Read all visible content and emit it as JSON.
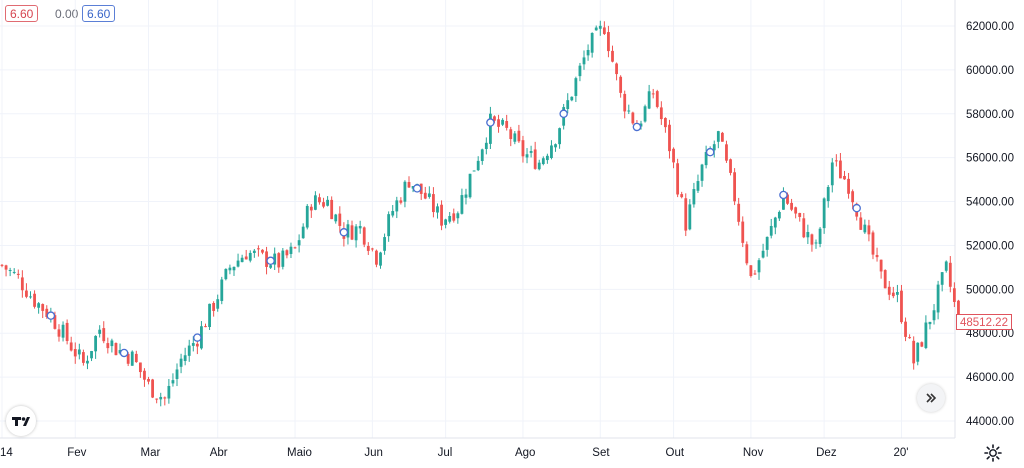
{
  "legend": {
    "open": "6.60",
    "middle": "0.00",
    "close": "6.60"
  },
  "price_label": "48512.22",
  "colors": {
    "up": "#26a69a",
    "down": "#ef5350",
    "grid": "#f0f3fa",
    "axis_text": "#131722"
  },
  "icons": {
    "logo": "tradingview-logo-icon",
    "scroll": "double-chevron-right-icon",
    "settings": "gear-icon"
  },
  "chart_data": {
    "type": "candlestick",
    "title": "",
    "y_axis": {
      "min": 43500,
      "max": 62800,
      "ticks": [
        62000,
        60000,
        58000,
        56000,
        54000,
        52000,
        50000,
        48000,
        46000,
        44000
      ],
      "tick_labels": [
        "62000.00",
        "60000.00",
        "58000.00",
        "56000.00",
        "54000.00",
        "52000.00",
        "50000.00",
        "48000.00",
        "46000.00",
        "44000.00"
      ]
    },
    "x_axis": {
      "labels": [
        "14",
        "Fev",
        "Mar",
        "Abr",
        "Maio",
        "Jun",
        "Jul",
        "Ago",
        "Set",
        "Out",
        "Nov",
        "Dez",
        "20'"
      ],
      "label_positions_day": [
        0,
        18,
        36,
        53,
        72,
        91,
        109,
        128,
        147,
        165,
        184,
        202,
        221
      ]
    },
    "close_series": [
      [
        0,
        51100
      ],
      [
        4,
        50500
      ],
      [
        8,
        49500
      ],
      [
        12,
        48800
      ],
      [
        16,
        47700
      ],
      [
        20,
        46600
      ],
      [
        24,
        48200
      ],
      [
        28,
        47300
      ],
      [
        32,
        46900
      ],
      [
        36,
        45600
      ],
      [
        40,
        45000
      ],
      [
        44,
        46800
      ],
      [
        48,
        47800
      ],
      [
        52,
        49300
      ],
      [
        56,
        51000
      ],
      [
        60,
        51700
      ],
      [
        64,
        51400
      ],
      [
        68,
        51200
      ],
      [
        72,
        51800
      ],
      [
        76,
        54000
      ],
      [
        80,
        54000
      ],
      [
        84,
        52600
      ],
      [
        88,
        52800
      ],
      [
        92,
        51500
      ],
      [
        96,
        53600
      ],
      [
        100,
        55000
      ],
      [
        104,
        54200
      ],
      [
        108,
        53200
      ],
      [
        112,
        53700
      ],
      [
        116,
        55600
      ],
      [
        120,
        57600
      ],
      [
        124,
        57200
      ],
      [
        128,
        56200
      ],
      [
        132,
        55800
      ],
      [
        136,
        57000
      ],
      [
        140,
        59000
      ],
      [
        144,
        61000
      ],
      [
        148,
        62000
      ],
      [
        152,
        58800
      ],
      [
        156,
        57400
      ],
      [
        160,
        59000
      ],
      [
        164,
        56500
      ],
      [
        168,
        53000
      ],
      [
        172,
        55500
      ],
      [
        176,
        57000
      ],
      [
        180,
        54200
      ],
      [
        184,
        50500
      ],
      [
        188,
        52200
      ],
      [
        192,
        54300
      ],
      [
        196,
        53000
      ],
      [
        200,
        51800
      ],
      [
        204,
        55800
      ],
      [
        208,
        54800
      ],
      [
        212,
        52600
      ],
      [
        216,
        50500
      ],
      [
        220,
        49600
      ],
      [
        224,
        46700
      ],
      [
        228,
        48700
      ],
      [
        232,
        50900
      ],
      [
        235,
        48512
      ]
    ],
    "series_markers_day": [
      12,
      30,
      48,
      66,
      84,
      102,
      120,
      138,
      156,
      174,
      192,
      210
    ]
  }
}
